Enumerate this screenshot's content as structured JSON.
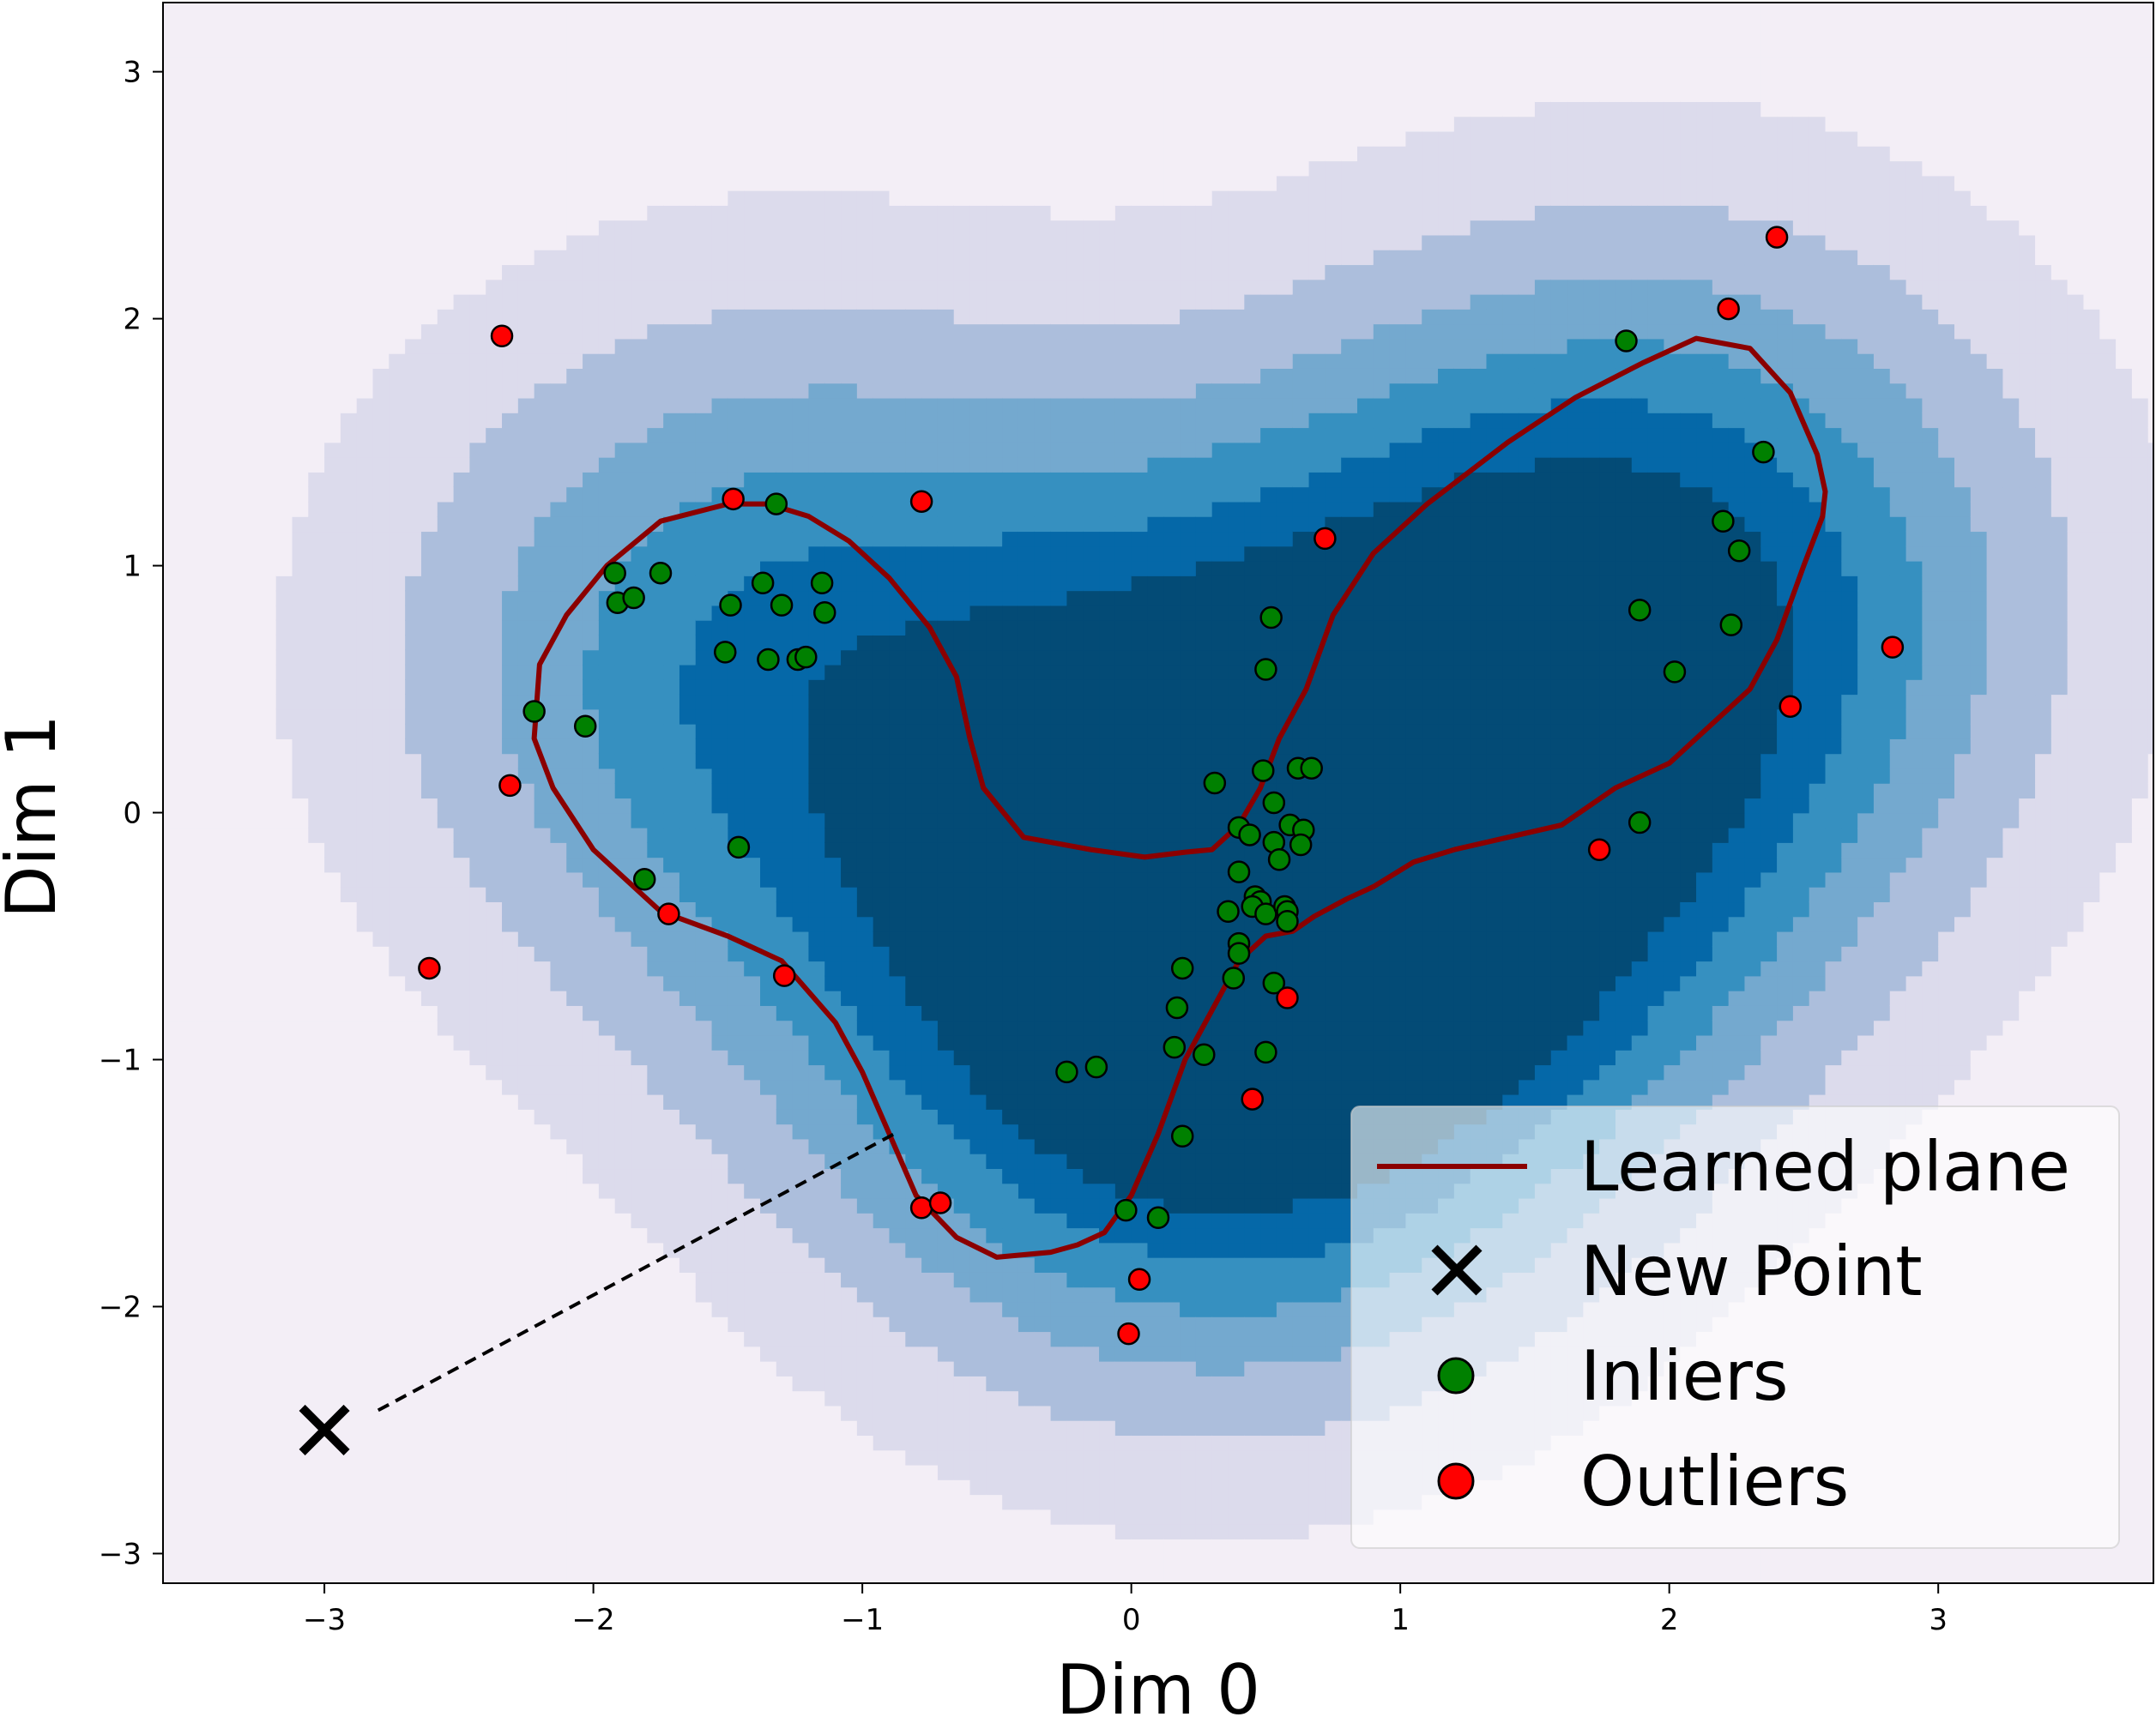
{
  "chart_data": {
    "type": "scatter",
    "title": "",
    "xlabel": "Dim 0",
    "ylabel": "Dim 1",
    "xlim": [
      -3.6,
      3.8
    ],
    "ylim": [
      -3.12,
      3.28
    ],
    "xticks": [
      -3,
      -2,
      -1,
      0,
      1,
      2,
      3
    ],
    "yticks": [
      -3,
      -2,
      -1,
      0,
      1,
      2,
      3
    ],
    "xtick_labels": [
      "−3",
      "−2",
      "−1",
      "0",
      "1",
      "2",
      "3"
    ],
    "ytick_labels": [
      "−3",
      "−2",
      "−1",
      "0",
      "1",
      "2",
      "3"
    ],
    "grid": false,
    "legend": {
      "position": "lower-right",
      "entries": [
        {
          "label": "Learned plane",
          "marker": "line",
          "color": "#8b0000"
        },
        {
          "label": "New Point",
          "marker": "x",
          "color": "#000000"
        },
        {
          "label": "Inliers",
          "marker": "circle",
          "color": "#008000"
        },
        {
          "label": "Outliers",
          "marker": "circle",
          "color": "#ff0000"
        }
      ]
    },
    "contour": {
      "levels_colors": [
        "#f3eef6",
        "#dcdbec",
        "#acbedc",
        "#74a9cf",
        "#3690c0",
        "#0568a8",
        "#034b76"
      ],
      "centers": [
        {
          "x": -1.35,
          "y": 0.65,
          "w": 1.0
        },
        {
          "x": 0.25,
          "y": -1.0,
          "w": 1.0
        },
        {
          "x": 0.5,
          "y": -0.3,
          "w": 0.8
        },
        {
          "x": 2.0,
          "y": 1.0,
          "w": 1.0
        },
        {
          "x": 1.4,
          "y": 0.2,
          "w": 0.6
        }
      ]
    },
    "learned_plane": {
      "name": "Learned plane",
      "color": "#8b0000",
      "x": [
        -1.5,
        -1.75,
        -1.95,
        -2.1,
        -2.2,
        -2.22,
        -2.15,
        -2.0,
        -1.75,
        -1.5,
        -1.3,
        -1.1,
        -1.0,
        -0.9,
        -0.8,
        -0.65,
        -0.5,
        -0.3,
        -0.2,
        -0.1,
        0.0,
        0.1,
        0.2,
        0.3,
        0.4,
        0.5,
        0.6,
        0.68,
        0.8,
        0.9,
        1.05,
        1.2,
        1.4,
        1.6,
        1.8,
        2.0,
        2.15,
        2.3,
        2.4,
        2.5,
        2.57,
        2.58,
        2.55,
        2.45,
        2.3,
        2.1,
        1.9,
        1.65,
        1.4,
        1.1,
        0.9,
        0.75,
        0.65,
        0.55,
        0.48,
        0.4,
        0.35,
        0.3,
        0.2,
        0.05,
        -0.15,
        -0.4,
        -0.55,
        -0.6,
        -0.65,
        -0.75,
        -0.9,
        -1.05,
        -1.2,
        -1.35,
        -1.5
      ],
      "y": [
        1.25,
        1.18,
        1.0,
        0.8,
        0.6,
        0.3,
        0.1,
        -0.15,
        -0.4,
        -0.5,
        -0.6,
        -0.85,
        -1.05,
        -1.3,
        -1.55,
        -1.72,
        -1.8,
        -1.78,
        -1.75,
        -1.7,
        -1.55,
        -1.3,
        -1.0,
        -0.8,
        -0.6,
        -0.5,
        -0.48,
        -0.42,
        -0.35,
        -0.3,
        -0.2,
        -0.15,
        -0.1,
        -0.05,
        0.1,
        0.2,
        0.35,
        0.5,
        0.7,
        1.0,
        1.2,
        1.3,
        1.45,
        1.7,
        1.88,
        1.92,
        1.82,
        1.68,
        1.5,
        1.25,
        1.05,
        0.8,
        0.5,
        0.3,
        0.1,
        -0.05,
        -0.1,
        -0.15,
        -0.16,
        -0.18,
        -0.15,
        -0.1,
        0.1,
        0.3,
        0.55,
        0.75,
        0.95,
        1.1,
        1.2,
        1.25,
        1.25
      ]
    },
    "new_point": {
      "name": "New Point",
      "x": -3.0,
      "y": -2.5,
      "color": "#000000"
    },
    "projection_line": {
      "x": [
        -2.8,
        -0.88
      ],
      "y": [
        -2.42,
        -1.3
      ]
    },
    "inliers": {
      "name": "Inliers",
      "color": "#008000",
      "points": [
        [
          -1.92,
          0.97
        ],
        [
          -1.75,
          0.97
        ],
        [
          -1.91,
          0.85
        ],
        [
          -1.85,
          0.87
        ],
        [
          -1.37,
          0.93
        ],
        [
          -1.15,
          0.93
        ],
        [
          -1.49,
          0.84
        ],
        [
          -1.3,
          0.84
        ],
        [
          -1.14,
          0.81
        ],
        [
          -1.51,
          0.65
        ],
        [
          -1.35,
          0.62
        ],
        [
          -1.24,
          0.62
        ],
        [
          -1.21,
          0.63
        ],
        [
          -2.22,
          0.41
        ],
        [
          -2.03,
          0.35
        ],
        [
          -1.32,
          1.25
        ],
        [
          -1.81,
          -0.27
        ],
        [
          -1.46,
          -0.14
        ],
        [
          1.84,
          1.91
        ],
        [
          2.35,
          1.46
        ],
        [
          2.2,
          1.18
        ],
        [
          2.26,
          1.06
        ],
        [
          1.89,
          0.82
        ],
        [
          2.23,
          0.76
        ],
        [
          2.02,
          0.57
        ],
        [
          1.89,
          -0.04
        ],
        [
          0.52,
          0.79
        ],
        [
          0.5,
          0.58
        ],
        [
          0.49,
          0.17
        ],
        [
          0.62,
          0.18
        ],
        [
          0.67,
          0.18
        ],
        [
          0.31,
          0.12
        ],
        [
          0.53,
          0.04
        ],
        [
          0.4,
          -0.06
        ],
        [
          0.44,
          -0.09
        ],
        [
          0.59,
          -0.05
        ],
        [
          0.64,
          -0.07
        ],
        [
          0.53,
          -0.12
        ],
        [
          0.63,
          -0.13
        ],
        [
          0.55,
          -0.19
        ],
        [
          0.4,
          -0.24
        ],
        [
          0.46,
          -0.34
        ],
        [
          0.48,
          -0.36
        ],
        [
          0.45,
          -0.38
        ],
        [
          0.36,
          -0.4
        ],
        [
          0.5,
          -0.41
        ],
        [
          0.57,
          -0.38
        ],
        [
          0.58,
          -0.4
        ],
        [
          0.58,
          -0.44
        ],
        [
          0.4,
          -0.53
        ],
        [
          0.4,
          -0.57
        ],
        [
          0.19,
          -0.63
        ],
        [
          0.38,
          -0.67
        ],
        [
          0.53,
          -0.69
        ],
        [
          0.17,
          -0.79
        ],
        [
          0.16,
          -0.95
        ],
        [
          0.27,
          -0.98
        ],
        [
          0.5,
          -0.97
        ],
        [
          -0.13,
          -1.03
        ],
        [
          -0.24,
          -1.05
        ],
        [
          0.19,
          -1.31
        ],
        [
          -0.02,
          -1.61
        ],
        [
          0.1,
          -1.64
        ]
      ]
    },
    "outliers": {
      "name": "Outliers",
      "color": "#ff0000",
      "points": [
        [
          2.4,
          2.33
        ],
        [
          2.22,
          2.04
        ],
        [
          -2.34,
          1.93
        ],
        [
          -1.48,
          1.27
        ],
        [
          -0.78,
          1.26
        ],
        [
          0.72,
          1.11
        ],
        [
          2.83,
          0.67
        ],
        [
          2.45,
          0.43
        ],
        [
          -2.31,
          0.11
        ],
        [
          1.74,
          -0.15
        ],
        [
          -1.72,
          -0.41
        ],
        [
          -2.61,
          -0.63
        ],
        [
          -1.29,
          -0.66
        ],
        [
          0.58,
          -0.75
        ],
        [
          0.45,
          -1.16
        ],
        [
          -0.78,
          -1.6
        ],
        [
          -0.71,
          -1.58
        ],
        [
          0.03,
          -1.89
        ],
        [
          -0.01,
          -2.11
        ]
      ]
    }
  }
}
